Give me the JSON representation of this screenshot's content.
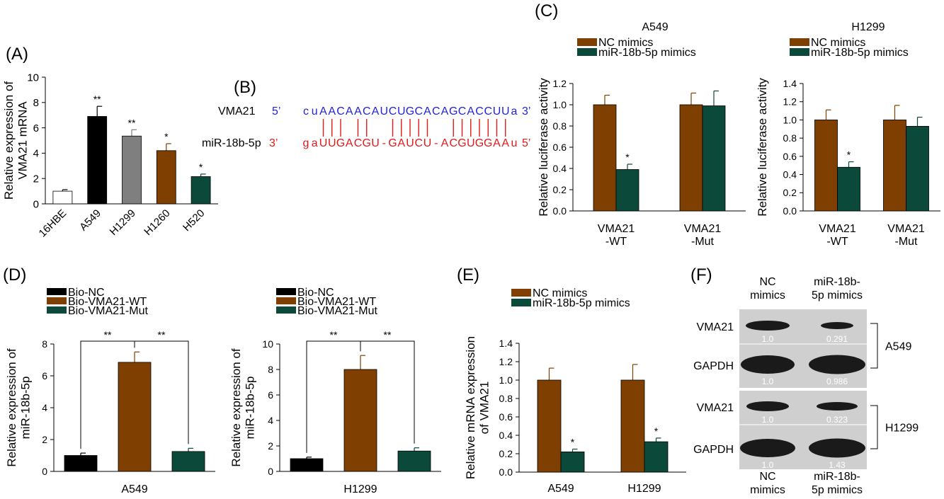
{
  "colors": {
    "black": "#000000",
    "white": "#ffffff",
    "gray": "#7f7f7f",
    "brown": "#7f3f00",
    "green": "#0b4a3a",
    "blue": "#2222dd",
    "red": "#e01a1a"
  },
  "panel_labels": {
    "a": "(A)",
    "b": "(B)",
    "c": "(C)",
    "d": "(D)",
    "e": "(E)",
    "f": "(F)"
  },
  "panel_b": {
    "vma_label": "VMA21",
    "vma_5p": "5’",
    "vma_seq": [
      "c",
      "u",
      "A",
      "A",
      "C",
      "A",
      "A",
      "C",
      "A",
      "U",
      "C",
      "U",
      "G",
      "C",
      "A",
      "C",
      "A",
      "G",
      "C",
      "A",
      "C",
      "C",
      "U",
      "U",
      "a"
    ],
    "vma_3p": "3’",
    "mir_label": "miR-18b-5p",
    "mir_3p": "3’",
    "mir_seq": [
      "g",
      "a",
      "U",
      "U",
      "G",
      "A",
      "C",
      "G",
      "U",
      "-",
      "G",
      "A",
      "U",
      "C",
      "U",
      "-",
      "A",
      "C",
      "G",
      "U",
      "G",
      "G",
      "A",
      "A",
      "u"
    ],
    "mir_5p": "5’",
    "pair_positions": [
      2,
      3,
      4,
      6,
      7,
      10,
      11,
      12,
      13,
      14,
      17,
      18,
      19,
      20,
      21,
      22,
      23
    ]
  },
  "chart_data": [
    {
      "id": "A",
      "type": "bar",
      "ylabel": "Relative expression of\nVMA21 mRNA",
      "categories": [
        "16HBE",
        "A549",
        "H1299",
        "H1260",
        "H520"
      ],
      "values": [
        1.0,
        6.9,
        5.35,
        4.2,
        2.15
      ],
      "errors": [
        0.12,
        0.8,
        0.5,
        0.55,
        0.2
      ],
      "significance": [
        "",
        "**",
        "**",
        "*",
        "*"
      ],
      "bar_colors": [
        "#ffffff",
        "#000000",
        "#7f7f7f",
        "#7f3f00",
        "#0b4a3a"
      ],
      "ylim": [
        0,
        10
      ],
      "yticks": [
        0,
        2,
        4,
        6,
        8,
        10
      ]
    },
    {
      "id": "C1",
      "type": "bar",
      "title": "A549",
      "ylabel": "Relative luciferase activity",
      "categories": [
        "VMA21\n-WT",
        "VMA21\n-Mut"
      ],
      "series": [
        {
          "name": "NC mimics",
          "color": "#7f3f00",
          "values": [
            1.0,
            1.0
          ],
          "errors": [
            0.09,
            0.11
          ],
          "significance": [
            "",
            ""
          ]
        },
        {
          "name": "miR-18b-5p mimics",
          "color": "#0b4a3a",
          "values": [
            0.39,
            0.99
          ],
          "errors": [
            0.05,
            0.14
          ],
          "significance": [
            "*",
            ""
          ]
        }
      ],
      "ylim": [
        0,
        1.2
      ],
      "yticks": [
        "0.0",
        "0.2",
        "0.4",
        "0.6",
        "0.8",
        "1.0",
        "1.2"
      ]
    },
    {
      "id": "C2",
      "type": "bar",
      "title": "H1299",
      "ylabel": "Relative luciferase activity",
      "categories": [
        "VMA21\n-WT",
        "VMA21\n-Mut"
      ],
      "series": [
        {
          "name": "NC mimics",
          "color": "#7f3f00",
          "values": [
            1.0,
            1.0
          ],
          "errors": [
            0.11,
            0.16
          ],
          "significance": [
            "",
            ""
          ]
        },
        {
          "name": "miR-18b-5p mimics",
          "color": "#0b4a3a",
          "values": [
            0.48,
            0.93
          ],
          "errors": [
            0.06,
            0.1
          ],
          "significance": [
            "*",
            ""
          ]
        }
      ],
      "ylim": [
        0,
        1.4
      ],
      "yticks": [
        "0.0",
        "0.2",
        "0.4",
        "0.6",
        "0.8",
        "1.0",
        "1.2",
        "1.4"
      ]
    },
    {
      "id": "D1",
      "type": "bar",
      "xlabel": "A549",
      "ylabel": "Relative expression of\nmiR-18b-5p",
      "legend": [
        "Bio-NC",
        "Bio-VMA21-WT",
        "Bio-VMA21-Mut"
      ],
      "categories": [
        "Bio-NC",
        "Bio-VMA21-WT",
        "Bio-VMA21-Mut"
      ],
      "values": [
        1.0,
        6.85,
        1.25
      ],
      "errors": [
        0.15,
        0.65,
        0.2
      ],
      "bar_colors": [
        "#000000",
        "#7f3f00",
        "#0b4a3a"
      ],
      "brackets": [
        {
          "from": 0,
          "to": 1,
          "label": "**"
        },
        {
          "from": 1,
          "to": 2,
          "label": "**"
        }
      ],
      "ylim": [
        0,
        8
      ],
      "yticks": [
        0,
        2,
        4,
        6,
        8
      ]
    },
    {
      "id": "D2",
      "type": "bar",
      "xlabel": "H1299",
      "ylabel": "Relative expression of\nmiR-18b-5p",
      "legend": [
        "Bio-NC",
        "Bio-VMA21-WT",
        "Bio-VMA21-Mut"
      ],
      "categories": [
        "Bio-NC",
        "Bio-VMA21-WT",
        "Bio-VMA21-Mut"
      ],
      "values": [
        1.0,
        8.0,
        1.6
      ],
      "errors": [
        0.12,
        1.1,
        0.25
      ],
      "bar_colors": [
        "#000000",
        "#7f3f00",
        "#0b4a3a"
      ],
      "brackets": [
        {
          "from": 0,
          "to": 1,
          "label": "**"
        },
        {
          "from": 1,
          "to": 2,
          "label": "**"
        }
      ],
      "ylim": [
        0,
        10
      ],
      "yticks": [
        0,
        2,
        4,
        6,
        8,
        10
      ]
    },
    {
      "id": "E",
      "type": "bar",
      "ylabel": "Relative mRNA expression\nof VMA21",
      "categories": [
        "A549",
        "H1299"
      ],
      "series": [
        {
          "name": "NC mimics",
          "color": "#7f3f00",
          "values": [
            1.0,
            1.0
          ],
          "errors": [
            0.13,
            0.17
          ],
          "significance": [
            "",
            ""
          ]
        },
        {
          "name": "miR-18b-5p mimics",
          "color": "#0b4a3a",
          "values": [
            0.22,
            0.33
          ],
          "errors": [
            0.03,
            0.04
          ],
          "significance": [
            "*",
            "*"
          ]
        }
      ],
      "ylim": [
        0,
        1.4
      ],
      "yticks": [
        "0.0",
        "0.2",
        "0.4",
        "0.6",
        "0.8",
        "1.0",
        "1.2",
        "1.4"
      ]
    }
  ],
  "panel_f": {
    "col_header_left": [
      "NC",
      "mimics"
    ],
    "col_header_right": [
      "miR-18b-",
      "5p mimics"
    ],
    "rows": [
      {
        "label": "VMA21",
        "values": [
          "1.0",
          "0.291"
        ]
      },
      {
        "label": "GAPDH",
        "values": [
          "1.0",
          "0.986"
        ]
      },
      {
        "label": "VMA21",
        "values": [
          "1.0",
          "0.323"
        ]
      },
      {
        "label": "GAPDH",
        "values": [
          "1.0",
          "1.43"
        ]
      }
    ],
    "groups": [
      "A549",
      "H1299"
    ]
  }
}
